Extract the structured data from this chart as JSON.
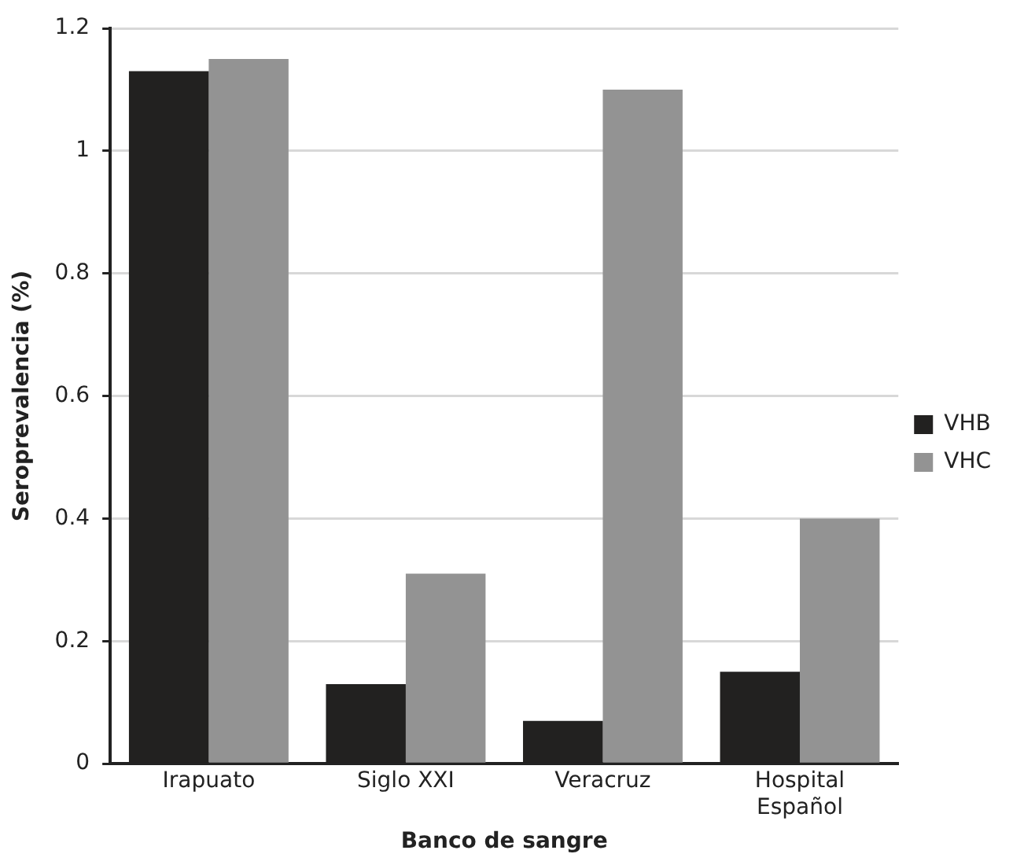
{
  "chart_data": {
    "type": "bar",
    "xlabel": "Banco de sangre",
    "ylabel": "Seroprevalencia (%)",
    "categories": [
      "Irapuato",
      "Siglo XXI",
      "Veracruz",
      "Hospital Español"
    ],
    "series": [
      {
        "name": "VHB",
        "color": "#222120",
        "values": [
          1.13,
          0.13,
          0.07,
          0.15
        ]
      },
      {
        "name": "VHC",
        "color": "#939393",
        "values": [
          1.15,
          0.31,
          1.1,
          0.4
        ]
      }
    ],
    "ylim": [
      0,
      1.2
    ],
    "yticks": [
      0,
      0.2,
      0.4,
      0.6,
      0.8,
      1,
      1.2
    ],
    "grid": "y",
    "legend": "right"
  }
}
